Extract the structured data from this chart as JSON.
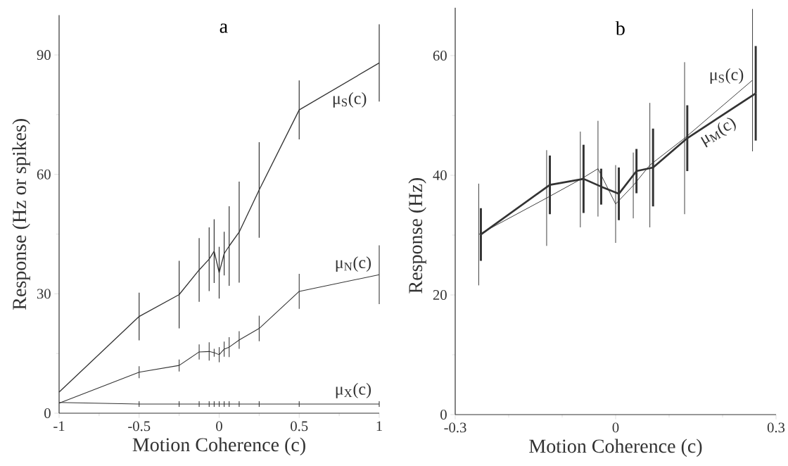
{
  "chart_data": [
    {
      "type": "line",
      "title": "a",
      "xlabel": "Motion Coherence (c)",
      "ylabel": "Response (Hz or spikes)",
      "xlim": [
        -1,
        1
      ],
      "ylim": [
        0,
        100
      ],
      "xticks": [
        -1,
        -0.5,
        0,
        0.5,
        1
      ],
      "yticks": [
        0,
        30,
        60,
        90
      ],
      "series": [
        {
          "name": "μ$_{S}$(c)",
          "color": "#333333",
          "x": [
            -1,
            -0.5,
            -0.25,
            -0.125,
            -0.0625,
            -0.03125,
            0,
            0.03125,
            0.0625,
            0.125,
            0.25,
            0.5,
            1
          ],
          "values": [
            5.3,
            24.3,
            29.8,
            36.0,
            38.7,
            40.7,
            35.3,
            40.1,
            42,
            45.5,
            56.1,
            76.2,
            88.0
          ],
          "errors": [
            null,
            6,
            8.5,
            8,
            8,
            8,
            6.5,
            5.5,
            10,
            12.7,
            12,
            7.4,
            9.7
          ]
        },
        {
          "name": "μ$_{N}$(c)",
          "color": "#333333",
          "x": [
            -1,
            -0.5,
            -0.25,
            -0.125,
            -0.0625,
            -0.03125,
            0,
            0.03125,
            0.0625,
            0.125,
            0.25,
            0.5,
            1
          ],
          "values": [
            2.5,
            10.3,
            12.0,
            15.4,
            15.5,
            15.2,
            14.7,
            16.1,
            16.6,
            18.4,
            21.3,
            30.6,
            34.8
          ],
          "errors": [
            null,
            1.5,
            1.5,
            1.9,
            2.3,
            1,
            1.9,
            1.9,
            2.5,
            2.2,
            3.2,
            4.4,
            7.4
          ]
        },
        {
          "name": "μ$_{X}$(c)",
          "color": "#333333",
          "x": [
            -1,
            -0.5,
            -0.25,
            -0.125,
            -0.0625,
            -0.03125,
            0,
            0.03125,
            0.0625,
            0.125,
            0.25,
            0.5,
            1
          ],
          "values": [
            2.7,
            2.3,
            2.3,
            2.3,
            2.3,
            2.3,
            2.3,
            2.3,
            2.3,
            2.3,
            2.3,
            2.3,
            2.3
          ],
          "errors": [
            null,
            0.7,
            0.7,
            0.7,
            0.7,
            0.7,
            0.7,
            0.7,
            0.7,
            0.7,
            0.7,
            0.7,
            0.7
          ]
        }
      ]
    },
    {
      "type": "line",
      "title": "b",
      "xlabel": "Motion Coherence (c)",
      "ylabel": "Response (Hz)",
      "xlim": [
        -0.3,
        0.3
      ],
      "ylim": [
        0,
        68
      ],
      "xticks": [
        -0.3,
        0,
        0.3
      ],
      "yticks": [
        0,
        20,
        40,
        60
      ],
      "series": [
        {
          "name": "μ$_{S}$(c)",
          "color": "#333333",
          "x": [
            -0.256,
            -0.129,
            -0.066,
            -0.033,
            0,
            0.033,
            0.064,
            0.129,
            0.256
          ],
          "values": [
            30.1,
            36.2,
            39.3,
            41.1,
            35.2,
            38.3,
            41.7,
            46.2,
            55.9
          ],
          "errors": [
            8.5,
            8,
            8,
            8,
            6.5,
            5.5,
            10.4,
            12.7,
            11.9
          ]
        },
        {
          "name": "μ$_{M}$(c)",
          "color": "#333333",
          "x": [
            -0.252,
            -0.123,
            -0.06,
            -0.027,
            0.006,
            0.039,
            0.07,
            0.134,
            0.262
          ],
          "values": [
            30.1,
            38.4,
            39.4,
            38.1,
            36.9,
            40.7,
            41.3,
            46.2,
            53.7
          ],
          "errors": [
            4.4,
            4.9,
            5.7,
            3,
            4.4,
            3.7,
            6.5,
            5.5,
            7.9
          ]
        }
      ]
    }
  ]
}
